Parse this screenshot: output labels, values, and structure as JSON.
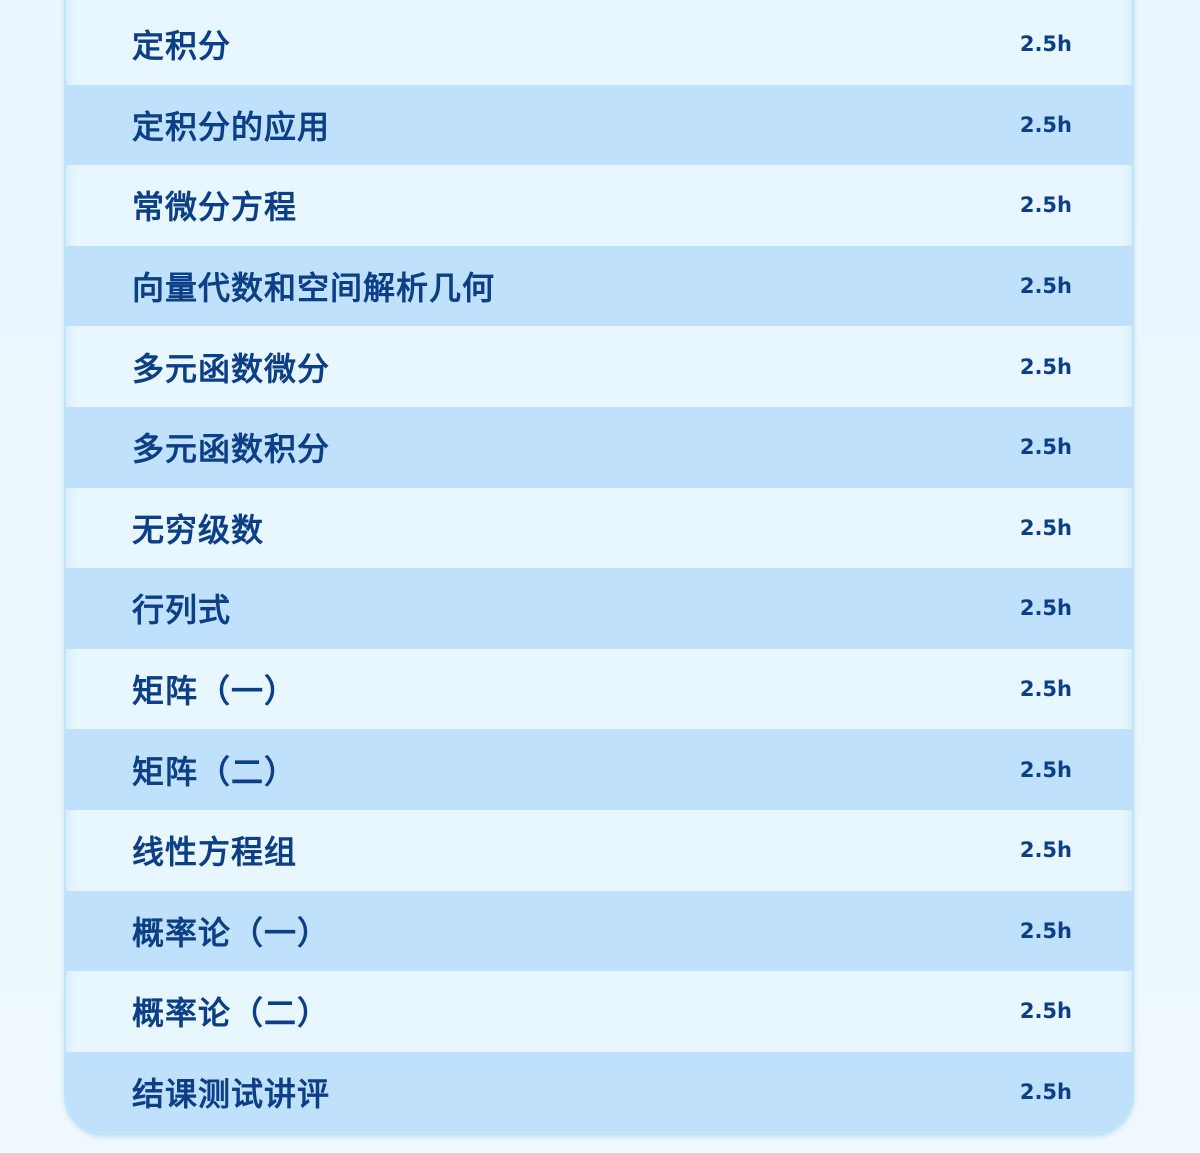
{
  "courses": [
    {
      "name": "定积分",
      "hours": "2.5h"
    },
    {
      "name": "定积分的应用",
      "hours": "2.5h"
    },
    {
      "name": "常微分方程",
      "hours": "2.5h"
    },
    {
      "name": "向量代数和空间解析几何",
      "hours": "2.5h"
    },
    {
      "name": "多元函数微分",
      "hours": "2.5h"
    },
    {
      "name": "多元函数积分",
      "hours": "2.5h"
    },
    {
      "name": "无穷级数",
      "hours": "2.5h"
    },
    {
      "name": "行列式",
      "hours": "2.5h"
    },
    {
      "name": "矩阵（一）",
      "hours": "2.5h"
    },
    {
      "name": "矩阵（二）",
      "hours": "2.5h"
    },
    {
      "name": "线性方程组",
      "hours": "2.5h"
    },
    {
      "name": "概率论（一）",
      "hours": "2.5h"
    },
    {
      "name": "概率论（二）",
      "hours": "2.5h"
    },
    {
      "name": "结课测试讲评",
      "hours": "2.5h"
    }
  ],
  "colors": {
    "text": "#0d3f86",
    "row_light": "#e8f6fe",
    "row_alt": "#bfe1fb"
  }
}
